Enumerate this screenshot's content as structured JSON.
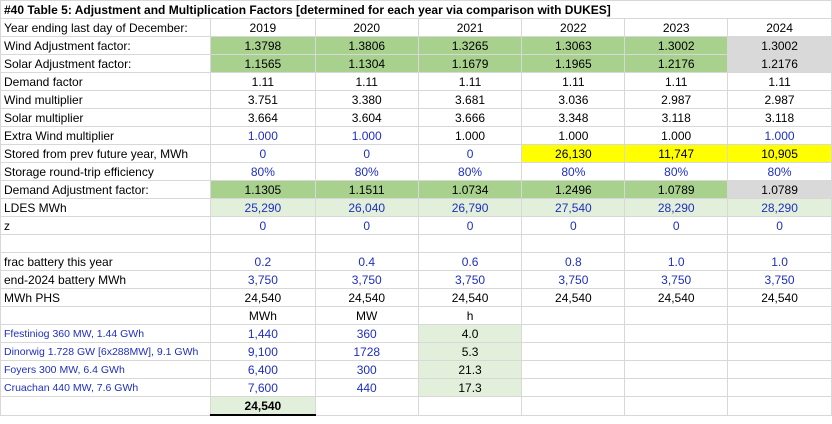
{
  "title": "#40 Table 5: Adjustment and Multiplication Factors [determined for each year via comparison with DUKES]",
  "year_row": {
    "label": "Year ending last day of December:",
    "values": [
      "2019",
      "2020",
      "2021",
      "2022",
      "2023",
      "2024"
    ]
  },
  "rows": [
    {
      "label": "Wind Adjustment factor:",
      "values": [
        "1.3798",
        "1.3806",
        "1.3265",
        "1.3063",
        "1.3002",
        "1.3002"
      ]
    },
    {
      "label": "Solar Adjustment factor:",
      "values": [
        "1.1565",
        "1.1304",
        "1.1679",
        "1.1965",
        "1.2176",
        "1.2176"
      ]
    },
    {
      "label": "Demand factor",
      "values": [
        "1.11",
        "1.11",
        "1.11",
        "1.11",
        "1.11",
        "1.11"
      ]
    },
    {
      "label": "Wind multiplier",
      "values": [
        "3.751",
        "3.380",
        "3.681",
        "3.036",
        "2.987",
        "2.987"
      ]
    },
    {
      "label": "Solar multiplier",
      "values": [
        "3.664",
        "3.604",
        "3.666",
        "3.348",
        "3.118",
        "3.118"
      ]
    },
    {
      "label": "Extra Wind multiplier",
      "values": [
        "1.000",
        "1.000",
        "1.000",
        "1.000",
        "1.000",
        "1.000"
      ]
    },
    {
      "label": "Stored from prev future year, MWh",
      "values": [
        "0",
        "0",
        "0",
        "26,130",
        "11,747",
        "10,905"
      ]
    },
    {
      "label": "Storage round-trip efficiency",
      "values": [
        "80%",
        "80%",
        "80%",
        "80%",
        "80%",
        "80%"
      ]
    },
    {
      "label": "Demand Adjustment factor:",
      "values": [
        "1.1305",
        "1.1511",
        "1.0734",
        "1.2496",
        "1.0789",
        "1.0789"
      ]
    },
    {
      "label": "LDES MWh",
      "values": [
        "25,290",
        "26,040",
        "26,790",
        "27,540",
        "28,290",
        "28,290"
      ]
    },
    {
      "label": "z",
      "values": [
        "0",
        "0",
        "0",
        "0",
        "0",
        "0"
      ]
    },
    {
      "label": "",
      "values": [
        "",
        "",
        "",
        "",
        "",
        ""
      ]
    },
    {
      "label": " frac battery this year",
      "values": [
        "0.2",
        "0.4",
        "0.6",
        "0.8",
        "1.0",
        "1.0"
      ]
    },
    {
      "label": "end-2024 battery MWh",
      "values": [
        "3,750",
        "3,750",
        "3,750",
        "3,750",
        "3,750",
        "3,750"
      ]
    },
    {
      "label": " MWh PHS",
      "values": [
        "24,540",
        "24,540",
        "24,540",
        "24,540",
        "24,540",
        "24,540"
      ]
    }
  ],
  "phs_header": {
    "c1": "MWh",
    "c2": "MW",
    "c3": "h"
  },
  "phs": [
    {
      "name": "Ffestiniog 360 MW, 1.44 GWh",
      "mwh": "1,440",
      "mw": "360",
      "h": "4.0"
    },
    {
      "name": "Dinorwig 1.728 GW [6x288MW], 9.1 GWh",
      "mwh": "9,100",
      "mw": "1728",
      "h": "5.3"
    },
    {
      "name": "Foyers 300 MW, 6.4 GWh",
      "mwh": "6,400",
      "mw": "300",
      "h": "21.3"
    },
    {
      "name": "Cruachan 440 MW, 7.6 GWh",
      "mwh": "7,600",
      "mw": "440",
      "h": "17.3"
    }
  ],
  "phs_total": "24,540",
  "colors": {
    "green": "#a9d18e",
    "light_green": "#e2efda",
    "grey": "#d9d9d9",
    "yellow": "#ffff00",
    "blue_text": "#1f2fbf"
  }
}
